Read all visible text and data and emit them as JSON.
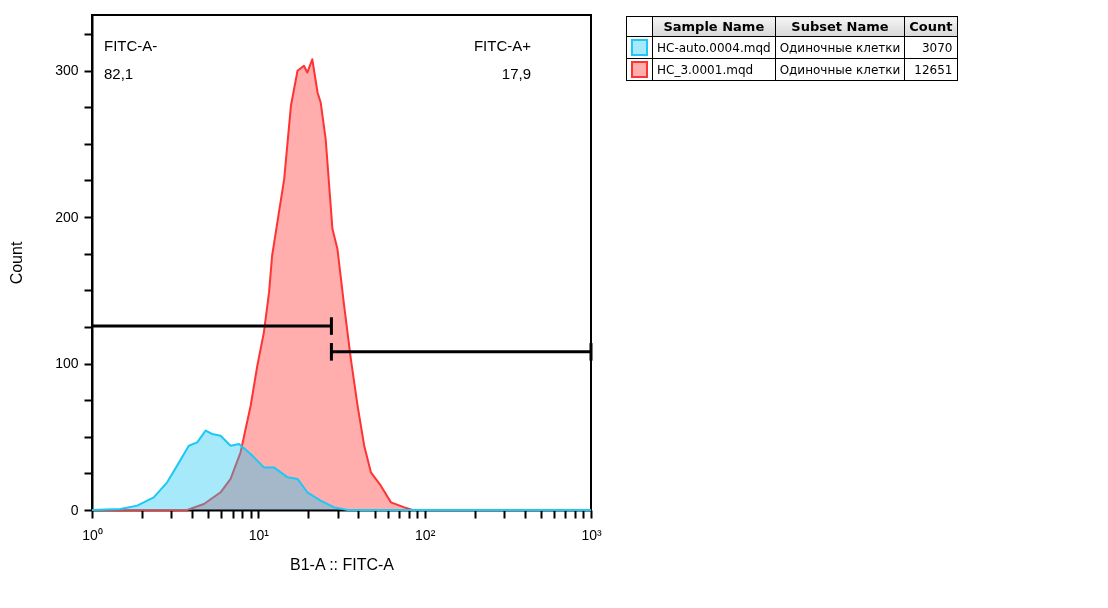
{
  "chart_data": {
    "type": "area",
    "xlabel": "B1-A :: FITC-A",
    "ylabel": "Count",
    "log": "x",
    "xlim": [
      1,
      1000
    ],
    "xticks": [
      {
        "value": 1,
        "label": "10⁰"
      },
      {
        "value": 2,
        "label": null
      },
      {
        "value": 3,
        "label": null
      },
      {
        "value": 4,
        "label": null
      },
      {
        "value": 5,
        "label": null
      },
      {
        "value": 6,
        "label": null
      },
      {
        "value": 7,
        "label": null
      },
      {
        "value": 8,
        "label": null
      },
      {
        "value": 9,
        "label": null
      },
      {
        "value": 10,
        "label": "10¹"
      },
      {
        "value": 20,
        "label": null
      },
      {
        "value": 30,
        "label": null
      },
      {
        "value": 40,
        "label": null
      },
      {
        "value": 50,
        "label": null
      },
      {
        "value": 60,
        "label": null
      },
      {
        "value": 70,
        "label": null
      },
      {
        "value": 80,
        "label": null
      },
      {
        "value": 90,
        "label": null
      },
      {
        "value": 100,
        "label": "10²"
      },
      {
        "value": 200,
        "label": null
      },
      {
        "value": 300,
        "label": null
      },
      {
        "value": 400,
        "label": null
      },
      {
        "value": 500,
        "label": null
      },
      {
        "value": 600,
        "label": null
      },
      {
        "value": 700,
        "label": null
      },
      {
        "value": 800,
        "label": null
      },
      {
        "value": 900,
        "label": null
      },
      {
        "value": 1000,
        "label": "10³"
      }
    ],
    "ylim": [
      0,
      338
    ],
    "yticks": [
      0,
      {
        "value": 25,
        "label": null
      },
      {
        "value": 50,
        "label": null
      },
      {
        "value": 75,
        "label": null
      },
      100,
      {
        "value": 125,
        "label": null
      },
      {
        "value": 150,
        "label": null
      },
      {
        "value": 175,
        "label": null
      },
      200,
      {
        "value": 225,
        "label": null
      },
      {
        "value": 250,
        "label": null
      },
      {
        "value": 275,
        "label": null
      },
      300,
      {
        "value": 325,
        "label": null
      }
    ],
    "grid": false,
    "legend": "right",
    "series": [
      {
        "name": "HC_3.0001.mqd",
        "color": "#ff3333",
        "x": [
          1,
          3.73,
          4.71,
          5.93,
          6.81,
          7.82,
          8.99,
          9.86,
          10.8,
          11.6,
          12.1,
          13.3,
          14.3,
          15.7,
          17.2,
          18.8,
          19.7,
          21.1,
          22.7,
          23.7,
          25.4,
          27.9,
          29.9,
          32.8,
          36.0,
          39.5,
          43.3,
          47.5,
          54.5,
          62.7,
          75.5,
          84.7,
          1000
        ],
        "values": [
          0,
          0,
          4.1,
          12.1,
          21.2,
          39.4,
          71.2,
          98.5,
          121.3,
          148.6,
          173.6,
          203.2,
          225.9,
          276,
          299.9,
          303.3,
          298.7,
          307.8,
          285.1,
          278.3,
          253.2,
          191.8,
          178.2,
          139.5,
          103.1,
          71.2,
          43.9,
          25.7,
          16.6,
          5.2,
          1.8,
          0,
          0
        ]
      },
      {
        "name": "HC-auto.0004.mqd",
        "color": "#1ec8f5",
        "x": [
          1,
          1.48,
          1.87,
          2.35,
          2.83,
          3.25,
          3.82,
          4.29,
          4.82,
          5.28,
          5.93,
          6.81,
          7.65,
          8.99,
          10.8,
          12.4,
          15.0,
          17.2,
          19.7,
          23.7,
          28.6,
          34.4,
          1000
        ],
        "values": [
          0,
          0.7,
          3,
          8.6,
          18.9,
          30.3,
          43.9,
          46.2,
          54.2,
          51.9,
          50.7,
          43.9,
          45,
          38.2,
          29.1,
          29.1,
          22.3,
          21.2,
          12.1,
          6.4,
          1.8,
          0,
          0
        ]
      },
      {
        "type": "line",
        "color": "#000000",
        "x": [
          1,
          27.5
        ],
        "values": [
          125.6,
          125.6
        ],
        "errors": [
          null,
          6
        ]
      },
      {
        "type": "line",
        "color": "#000000",
        "x": [
          27.5,
          1000
        ],
        "values": [
          108,
          108
        ],
        "errors": [
          6,
          6
        ]
      }
    ],
    "annotations": [
      "FITC-A-",
      "82,1",
      "FITC-A+",
      "17,9",
      "Sample Name",
      "Subset Name",
      "Count",
      "Одиночные клетки",
      "3070",
      "Одиночные клетки",
      "12651"
    ]
  }
}
